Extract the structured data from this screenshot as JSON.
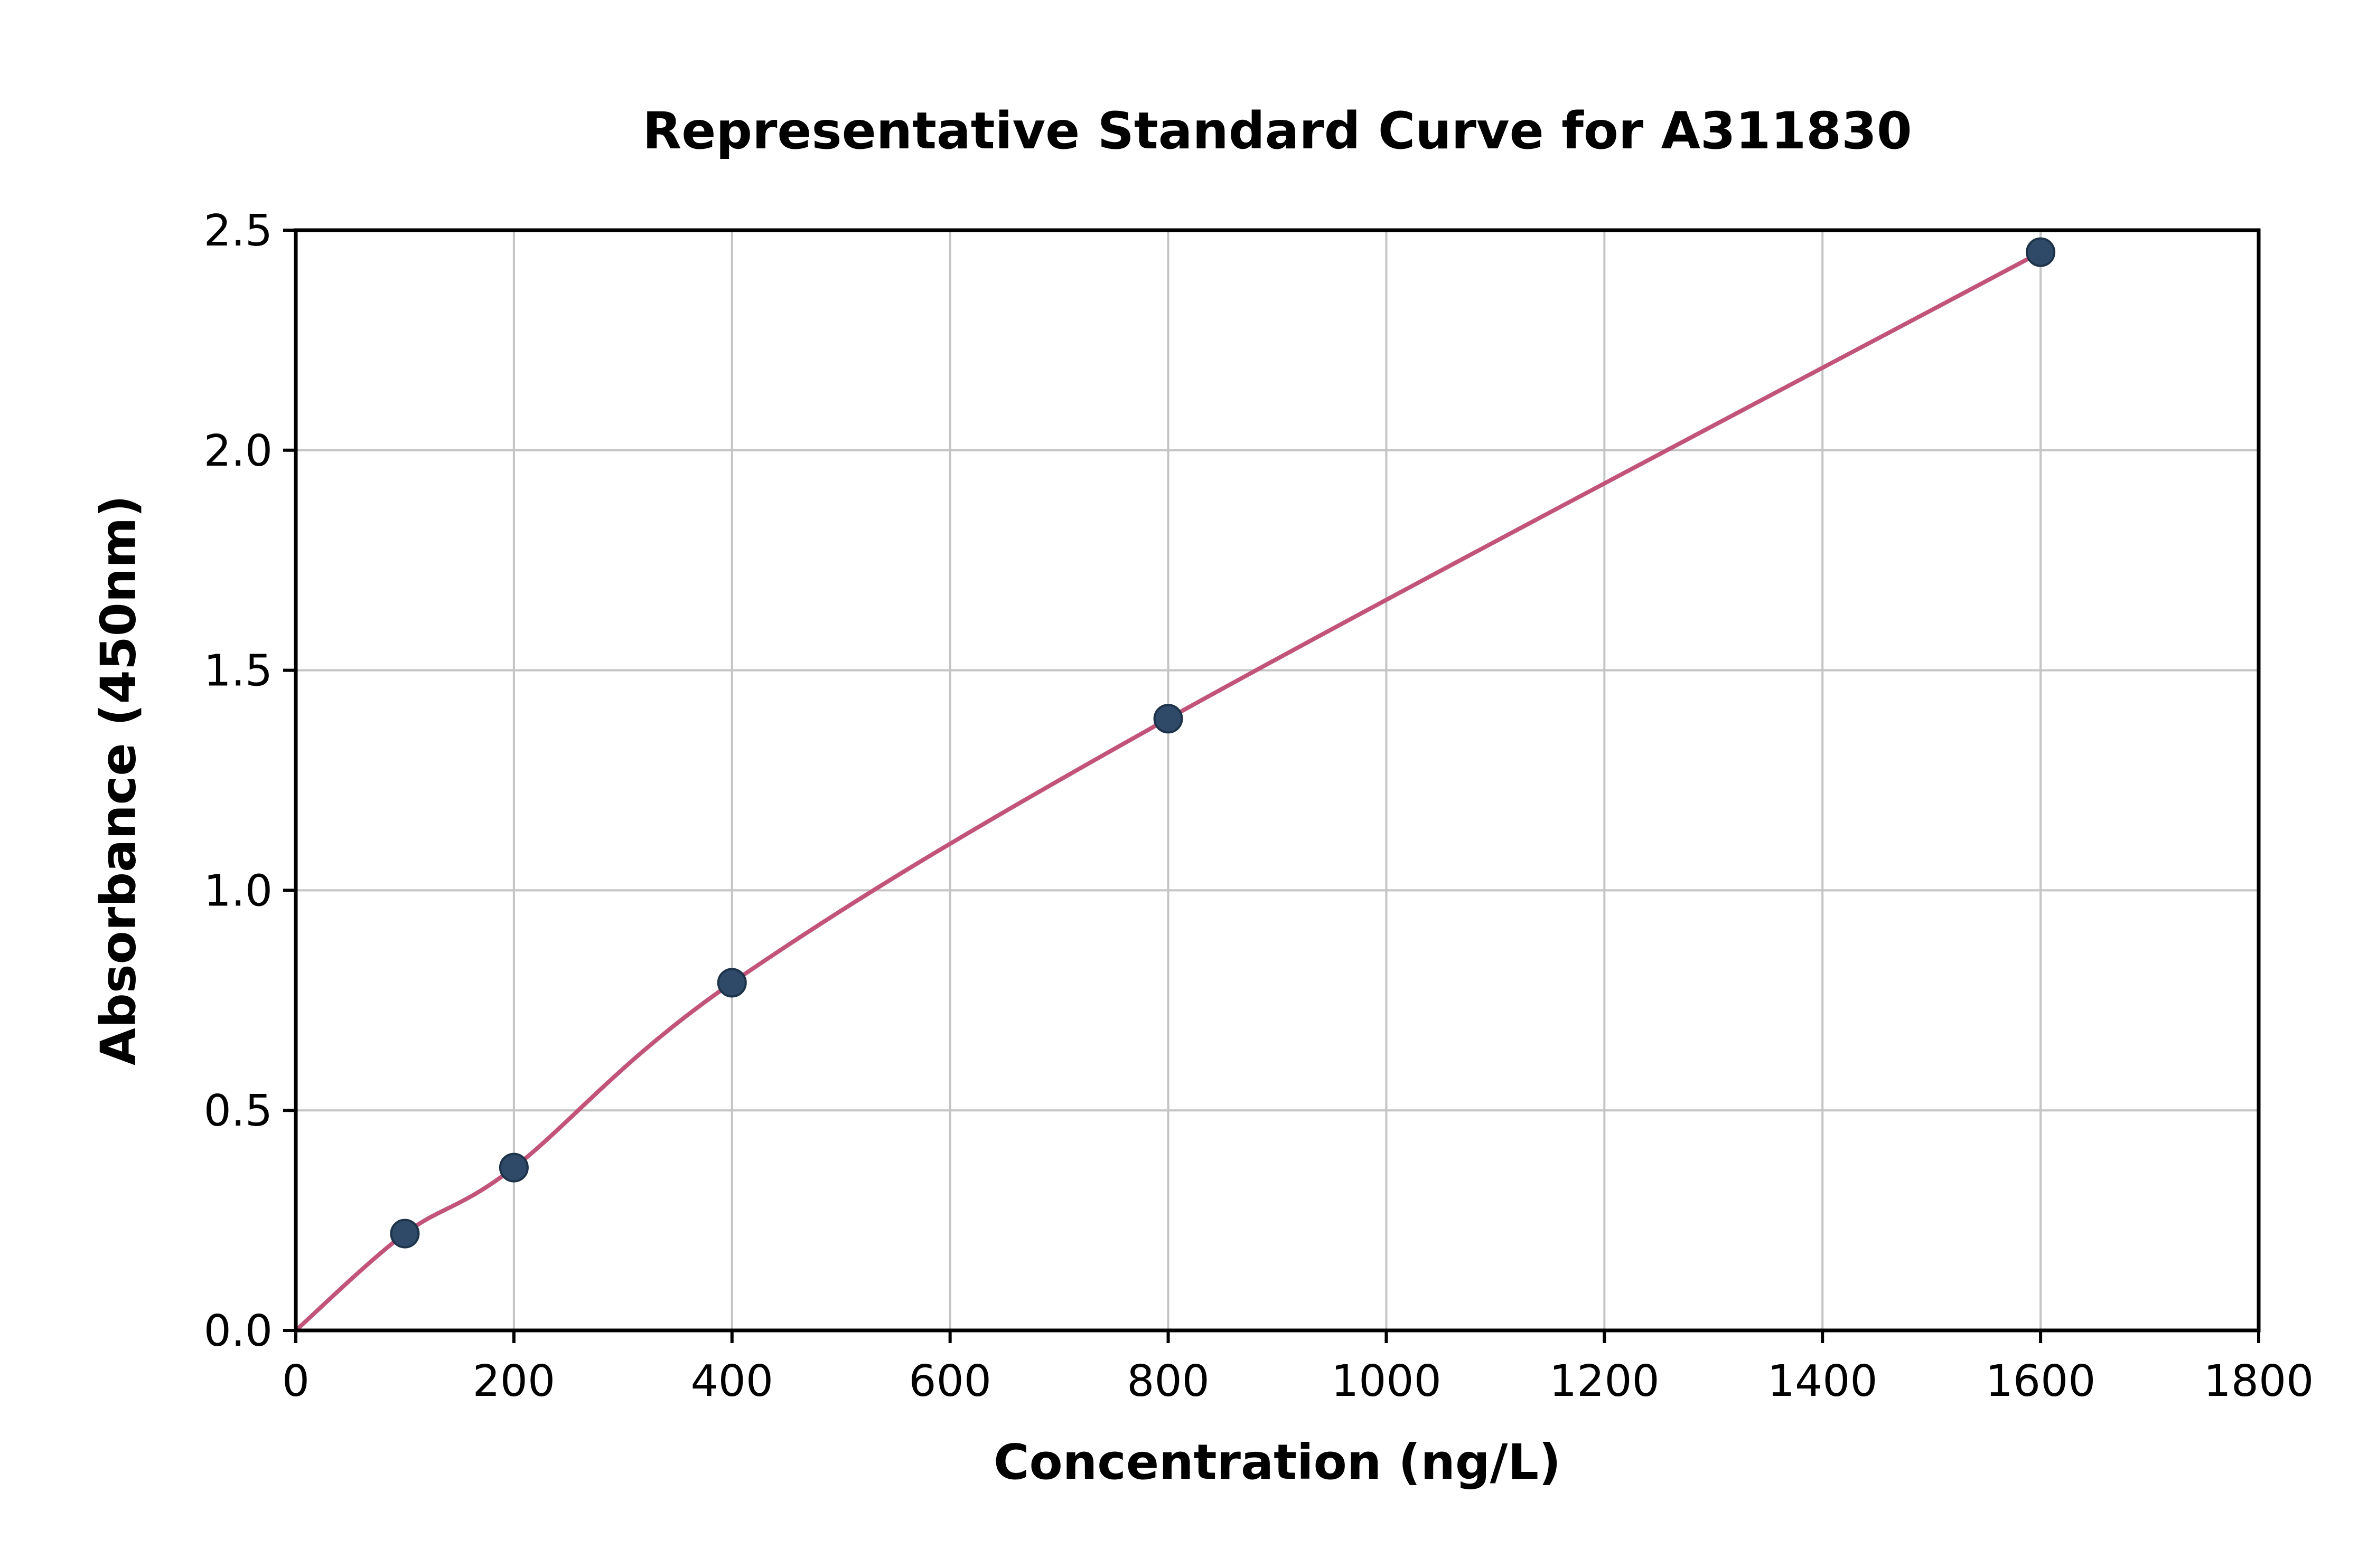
{
  "figure": {
    "background": "#ffffff"
  },
  "chart_data": {
    "type": "scatter",
    "title": "Representative Standard Curve for A311830",
    "xlabel": "Concentration (ng/L)",
    "ylabel": "Absorbance (450nm)",
    "points": {
      "x": [
        100,
        200,
        400,
        800,
        1600
      ],
      "y": [
        0.22,
        0.37,
        0.79,
        1.39,
        2.45
      ]
    },
    "fit_line": {
      "x": [
        0,
        100,
        200,
        400,
        800,
        1600
      ],
      "y": [
        0.0,
        0.22,
        0.37,
        0.79,
        1.39,
        2.45
      ]
    },
    "xlim": [
      0,
      1800
    ],
    "ylim": [
      0,
      2.5
    ],
    "xticks": [
      0,
      200,
      400,
      600,
      800,
      1000,
      1200,
      1400,
      1600,
      1800
    ],
    "xtick_labels": [
      "0",
      "200",
      "400",
      "600",
      "800",
      "1000",
      "1200",
      "1400",
      "1600",
      "1800"
    ],
    "yticks": [
      0.0,
      0.5,
      1.0,
      1.5,
      2.0,
      2.5
    ],
    "ytick_labels": [
      "0.0",
      "0.5",
      "1.0",
      "1.5",
      "2.0",
      "2.5"
    ],
    "grid": true,
    "legend": false,
    "colors": {
      "curve": "#c2547a",
      "marker": "#2e4a68",
      "marker_edge": "#1d3349",
      "grid": "#c4c4c4",
      "axis": "#000000",
      "text": "#000000"
    }
  }
}
